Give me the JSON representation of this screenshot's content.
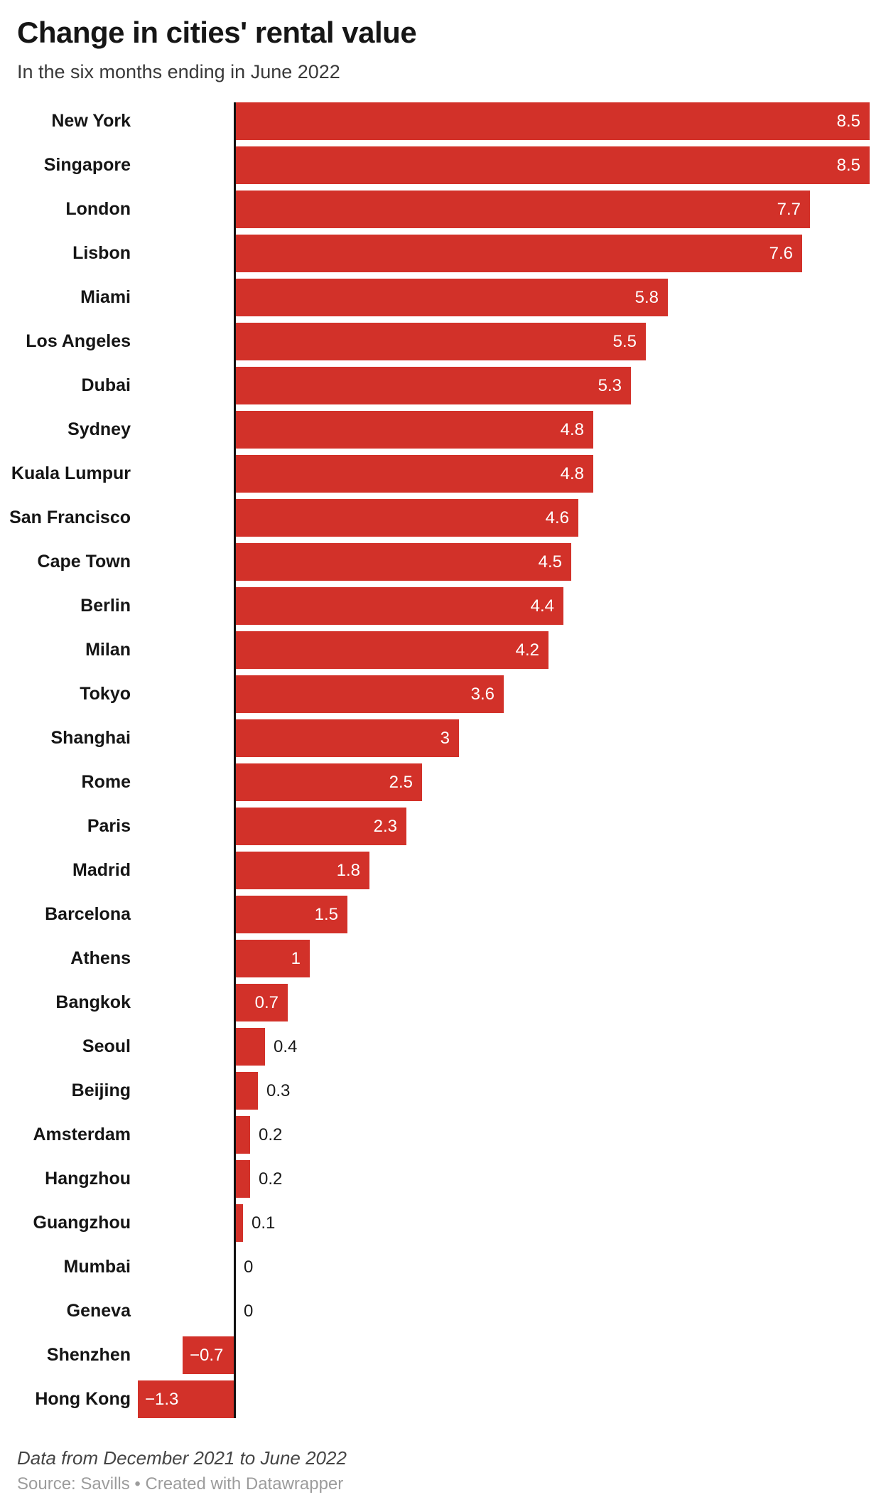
{
  "header": {
    "title": "Change in cities' rental value",
    "subtitle": "In the six months ending in June 2022"
  },
  "chart_data": {
    "type": "bar",
    "orientation": "horizontal",
    "title": "Change in cities' rental value",
    "subtitle": "In the six months ending in June 2022",
    "xlabel": "",
    "ylabel": "",
    "xlim": [
      -1.3,
      8.5
    ],
    "grid": false,
    "legend": false,
    "bar_color": "#d23129",
    "value_label_color_inside": "#ffffff",
    "value_label_color_outside": "#1a1a1a",
    "axis_color": "#111111",
    "categories": [
      "New York",
      "Singapore",
      "London",
      "Lisbon",
      "Miami",
      "Los Angeles",
      "Dubai",
      "Sydney",
      "Kuala Lumpur",
      "San Francisco",
      "Cape Town",
      "Berlin",
      "Milan",
      "Tokyo",
      "Shanghai",
      "Rome",
      "Paris",
      "Madrid",
      "Barcelona",
      "Athens",
      "Bangkok",
      "Seoul",
      "Beijing",
      "Amsterdam",
      "Hangzhou",
      "Guangzhou",
      "Mumbai",
      "Geneva",
      "Shenzhen",
      "Hong Kong"
    ],
    "values": [
      8.5,
      8.5,
      7.7,
      7.6,
      5.8,
      5.5,
      5.3,
      4.8,
      4.8,
      4.6,
      4.5,
      4.4,
      4.2,
      3.6,
      3,
      2.5,
      2.3,
      1.8,
      1.5,
      1,
      0.7,
      0.4,
      0.3,
      0.2,
      0.2,
      0.1,
      0,
      0,
      -0.7,
      -1.3
    ],
    "value_labels": [
      "8.5",
      "8.5",
      "7.7",
      "7.6",
      "5.8",
      "5.5",
      "5.3",
      "4.8",
      "4.8",
      "4.6",
      "4.5",
      "4.4",
      "4.2",
      "3.6",
      "3",
      "2.5",
      "2.3",
      "1.8",
      "1.5",
      "1",
      "0.7",
      "0.4",
      "0.3",
      "0.2",
      "0.2",
      "0.1",
      "0",
      "0",
      "−0.7",
      "−1.3"
    ]
  },
  "footer": {
    "notes": "Data from December 2021 to June 2022",
    "source": "Source: Savills • Created with Datawrapper"
  }
}
